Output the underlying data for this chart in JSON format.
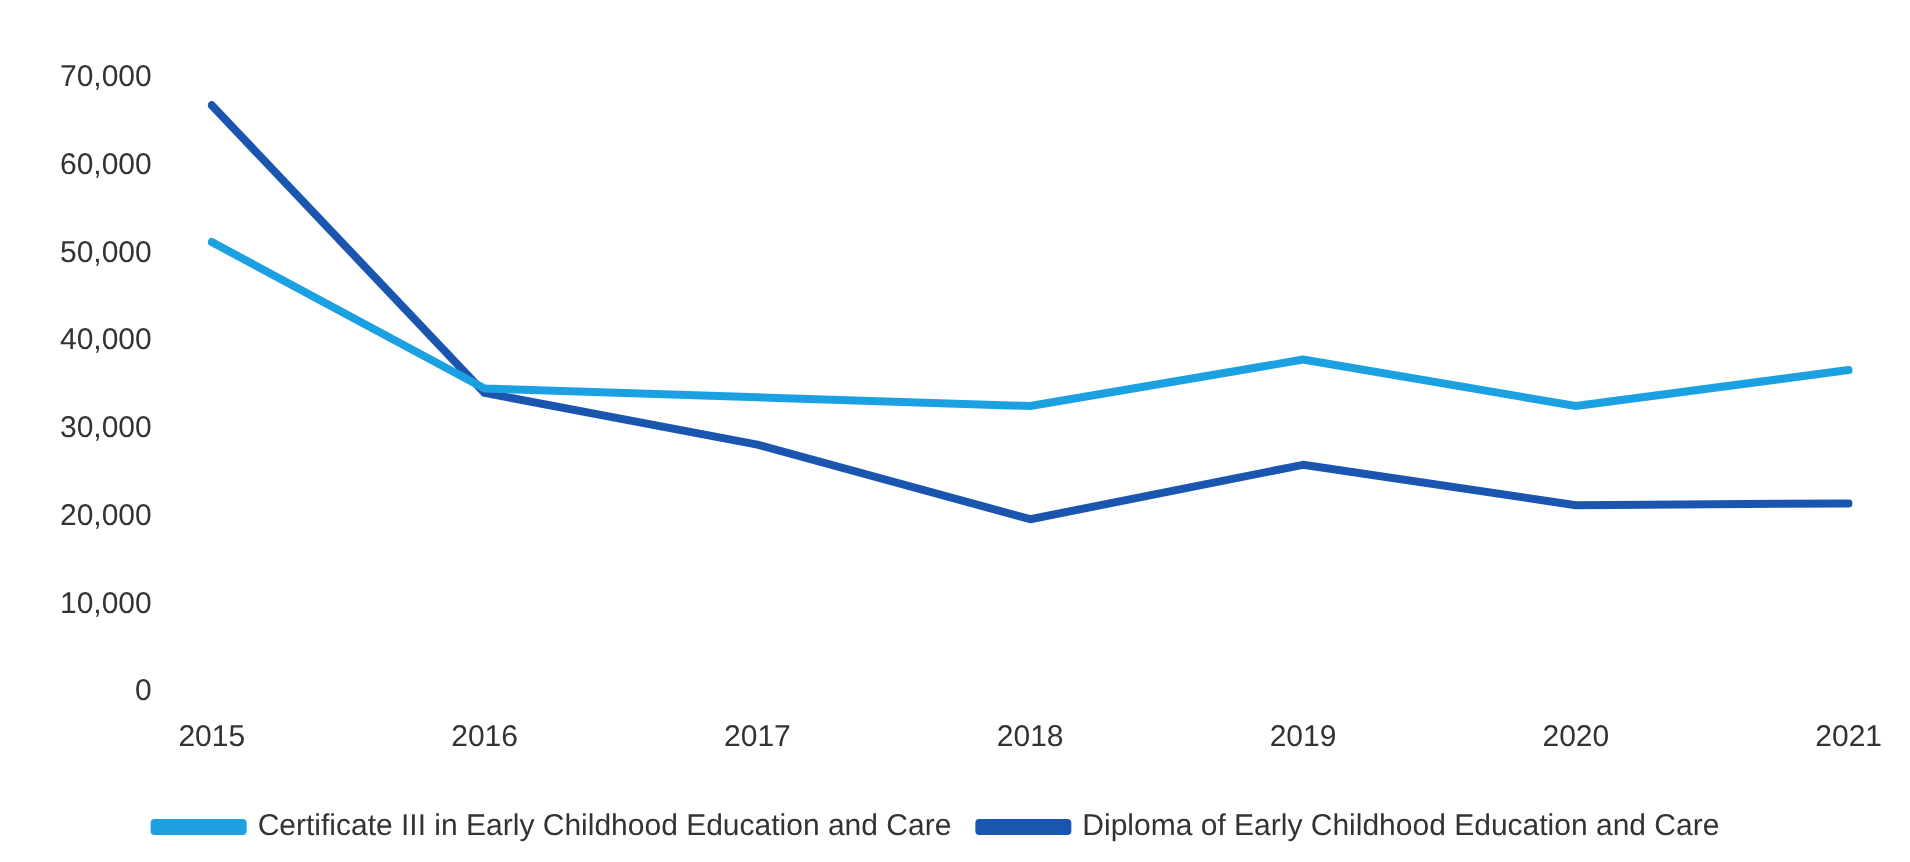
{
  "chart_data": {
    "type": "line",
    "categories": [
      "2015",
      "2016",
      "2017",
      "2018",
      "2019",
      "2020",
      "2021"
    ],
    "series": [
      {
        "name": "Certificate III in Early Childhood Education and Care",
        "color": "#1ba1e2",
        "values": [
          51300,
          34600,
          33600,
          32600,
          37900,
          32600,
          36700
        ]
      },
      {
        "name": "Diploma of Early Childhood Education and Care",
        "color": "#1a55b0",
        "values": [
          66900,
          34100,
          28200,
          19700,
          25900,
          21300,
          21500
        ]
      }
    ],
    "ylim": [
      0,
      70000
    ],
    "yticks": [
      {
        "value": 0,
        "label": "0"
      },
      {
        "value": 10000,
        "label": "10,000"
      },
      {
        "value": 20000,
        "label": "20,000"
      },
      {
        "value": 30000,
        "label": "30,000"
      },
      {
        "value": 40000,
        "label": "40,000"
      },
      {
        "value": 50000,
        "label": "50,000"
      },
      {
        "value": 60000,
        "label": "60,000"
      },
      {
        "value": 70000,
        "label": "70,000"
      }
    ],
    "grid": false,
    "legend": "bottom",
    "marker": "none",
    "line_style": "solid"
  }
}
